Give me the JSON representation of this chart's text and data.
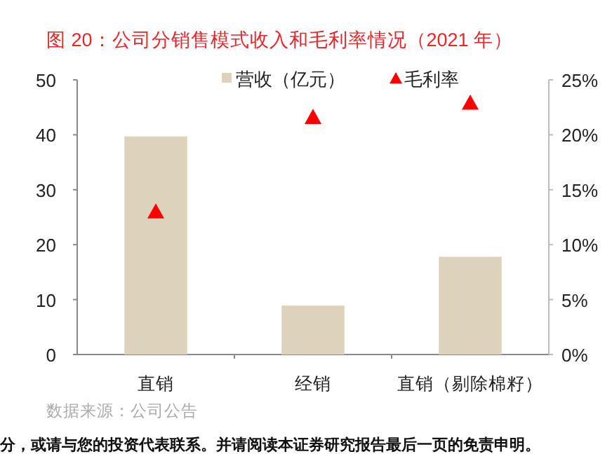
{
  "chart_data": {
    "type": "bar",
    "title": "图 20：公司分销售模式收入和毛利率情况（2021 年）",
    "categories": [
      "直销",
      "经销",
      "直销（剔除棉籽）"
    ],
    "series": [
      {
        "name": "营收（亿元）",
        "color": "#ddd3bc",
        "values": [
          39.7,
          8.9,
          17.8
        ]
      },
      {
        "name": "毛利率",
        "type": "scatter",
        "axis": "y2",
        "marker": "triangle",
        "color": "#ff0000",
        "values": [
          13.0,
          21.6,
          22.9
        ]
      }
    ],
    "ylim": [
      0,
      50
    ],
    "yticks": [
      0,
      10,
      20,
      30,
      40,
      50
    ],
    "y2lim": [
      0,
      25
    ],
    "y2ticks": [
      {
        "value": 0,
        "label": "0%"
      },
      {
        "value": 5,
        "label": "5%"
      },
      {
        "value": 10,
        "label": "10%"
      },
      {
        "value": 15,
        "label": "15%"
      },
      {
        "value": 20,
        "label": "20%"
      },
      {
        "value": 25,
        "label": "25%"
      }
    ],
    "grid": false,
    "legend": "top",
    "annotations": [
      "数据来源：公司公告",
      "分，或请与您的投资代表联系。并请阅读本证券研究报告最后一页的免责申明。"
    ]
  }
}
